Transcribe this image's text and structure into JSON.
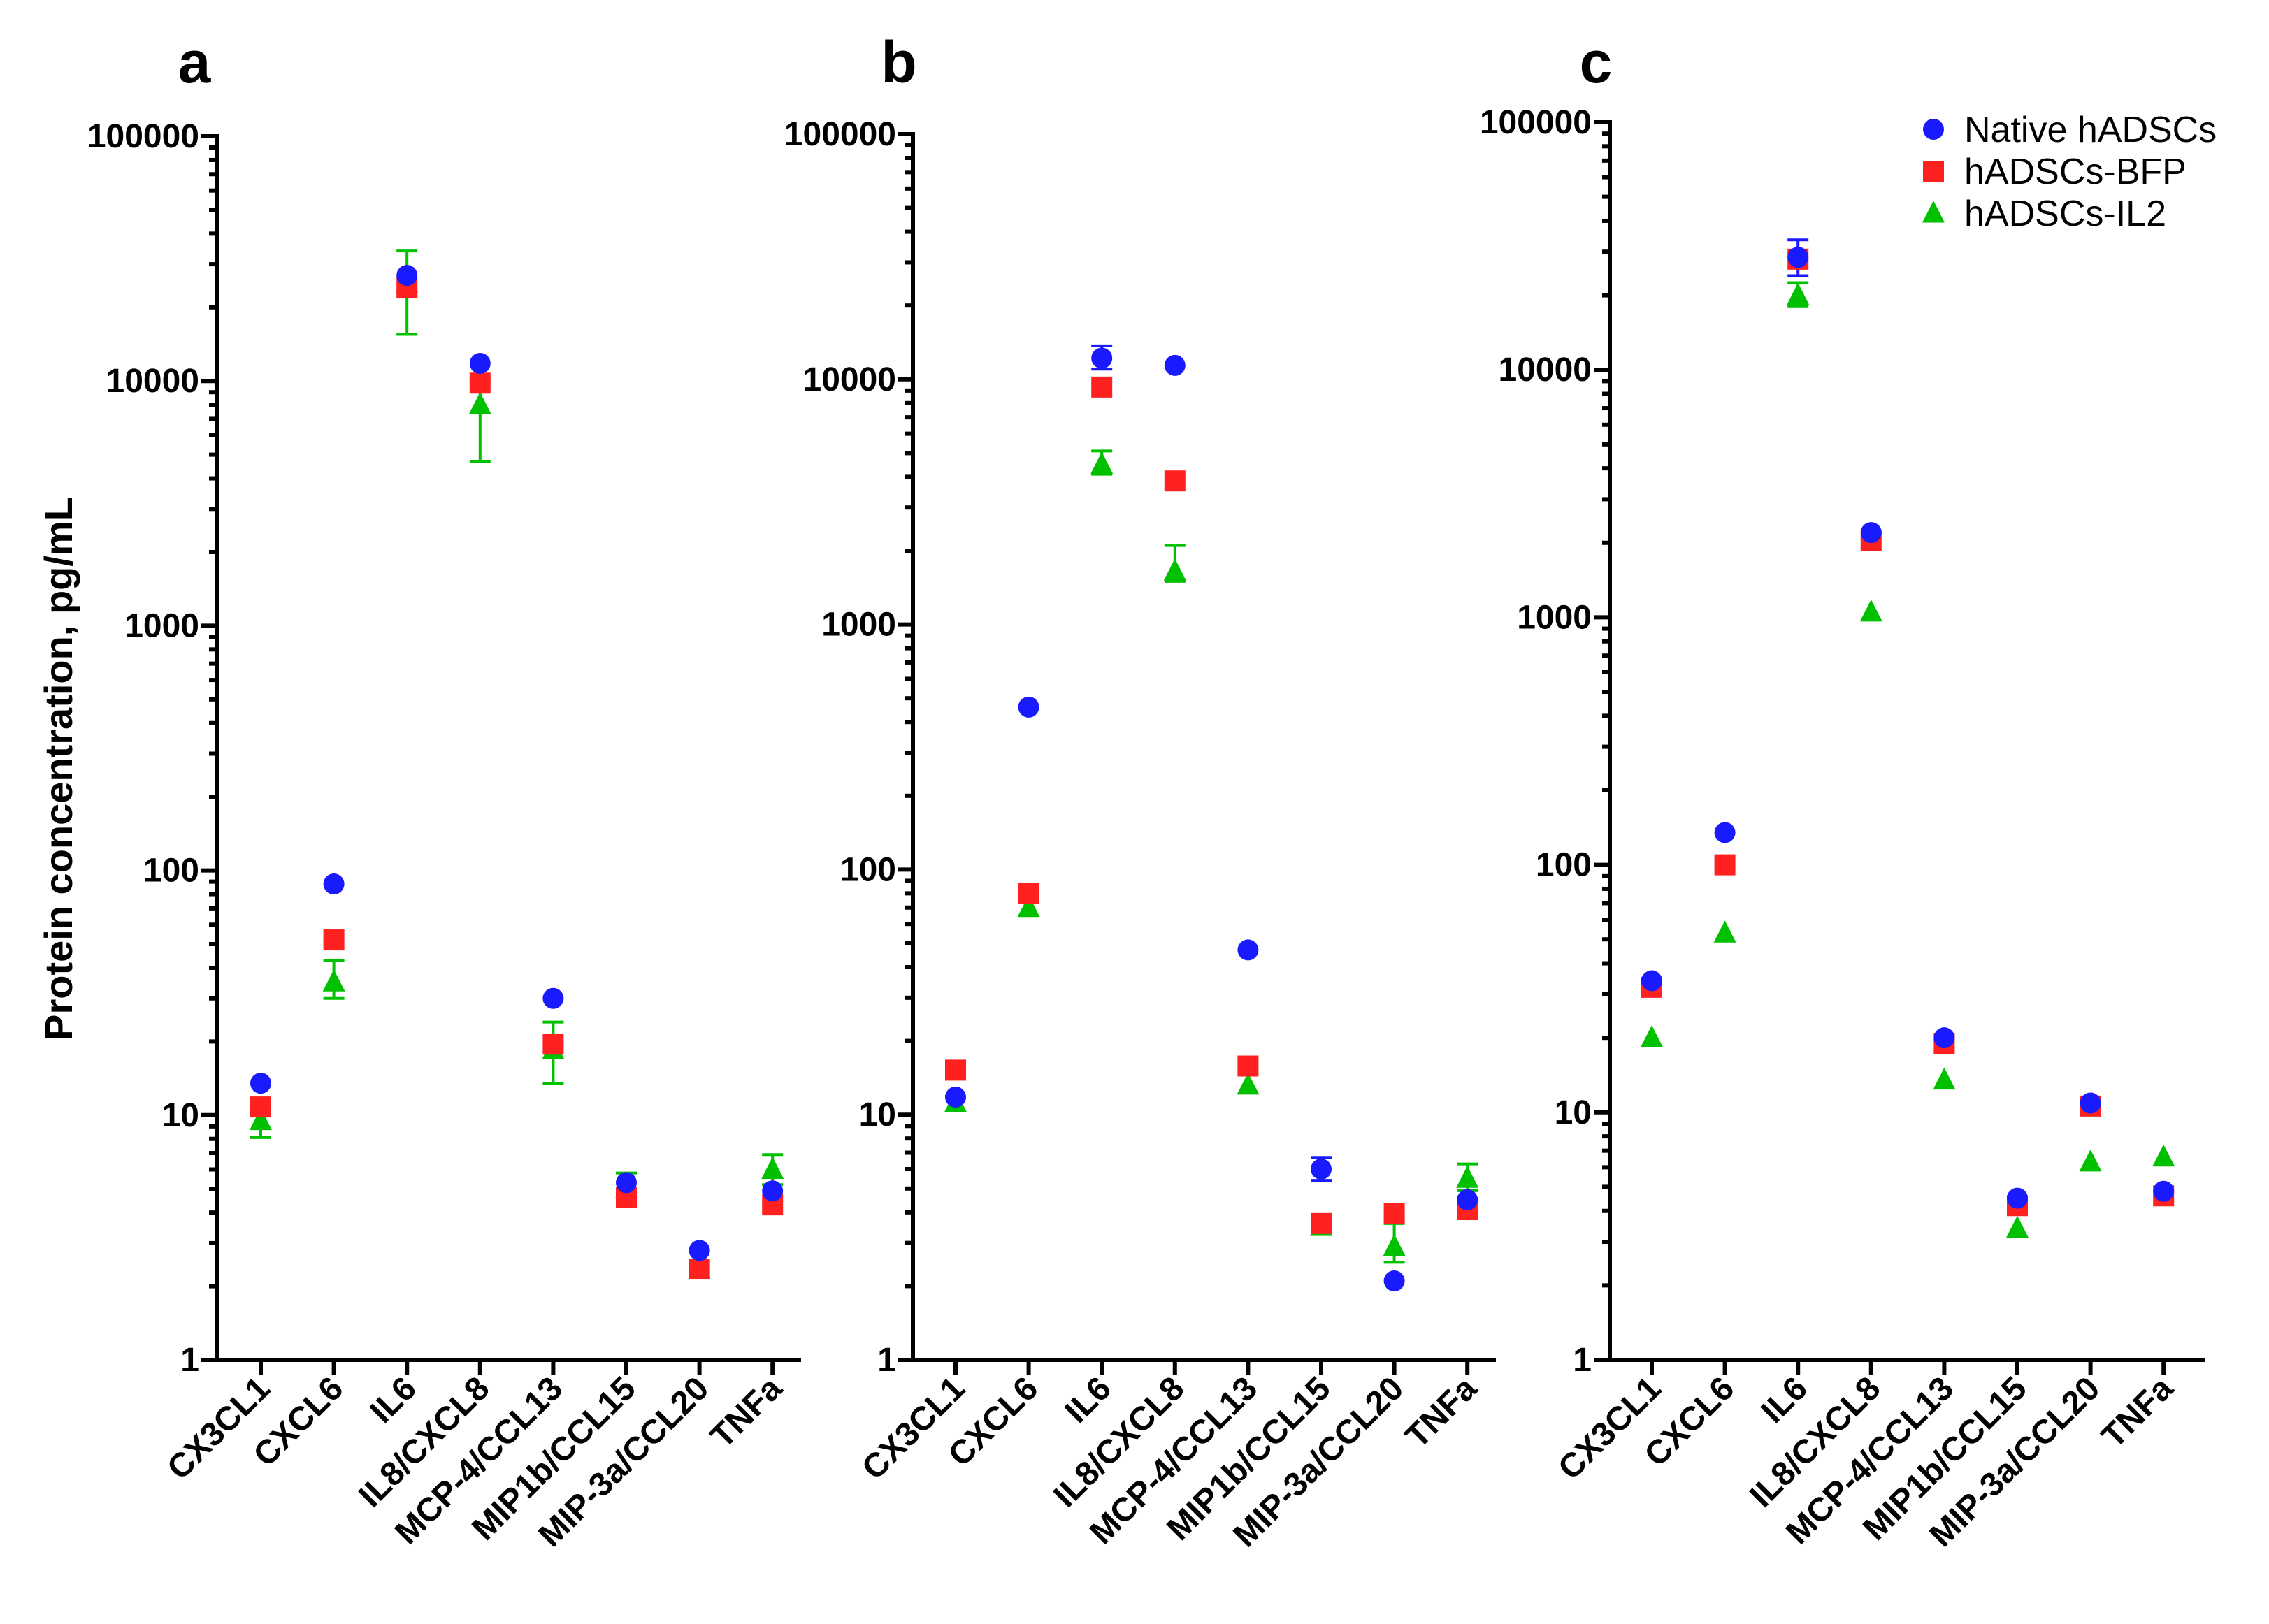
{
  "chart_data": {
    "type": "scatter",
    "y_title": "Protein concentration, pg/mL",
    "y_scale": "log",
    "ylim": [
      1,
      100000
    ],
    "ytick_labels": [
      "1",
      "10",
      "100",
      "1000",
      "10000",
      "100000"
    ],
    "categories": [
      "CX3CL1",
      "CXCL6",
      "IL6",
      "IL8/CXCL8",
      "MCP-4/CCL13",
      "MIP1b/CCL15",
      "MIP-3a/CCL20",
      "TNFa"
    ],
    "legend": [
      {
        "name": "Native hADSCs",
        "color": "#1a1aff",
        "marker": "circle"
      },
      {
        "name": "hADSCs-BFP",
        "color": "#ff2020",
        "marker": "square"
      },
      {
        "name": "hADSCs-IL2",
        "color": "#00c000",
        "marker": "triangle"
      }
    ],
    "legend_position": "top-right of panel c",
    "panels": [
      {
        "letter": "a",
        "series": [
          {
            "name": "Native hADSCs",
            "values": [
              13.5,
              88,
              27000,
              11800,
              30,
              5.3,
              2.8,
              4.9
            ]
          },
          {
            "name": "hADSCs-BFP",
            "values": [
              10.8,
              52,
              24000,
              9800,
              19.5,
              4.6,
              2.35,
              4.3
            ]
          },
          {
            "name": "hADSCs-IL2",
            "values": [
              9.5,
              35,
              25000,
              8000,
              18.5,
              5.0,
              2.35,
              6.0
            ]
          }
        ],
        "errors": [
          {
            "series": "hADSCs-IL2",
            "category": "CX3CL1",
            "low": 8.1,
            "high": 10.5
          },
          {
            "series": "hADSCs-IL2",
            "category": "CXCL6",
            "low": 30,
            "high": 43
          },
          {
            "series": "hADSCs-IL2",
            "category": "IL6",
            "low": 15500,
            "high": 34000
          },
          {
            "series": "hADSCs-IL2",
            "category": "IL8/CXCL8",
            "low": 4700,
            "high": 10000
          },
          {
            "series": "hADSCs-IL2",
            "category": "MCP-4/CCL13",
            "low": 13.5,
            "high": 24
          },
          {
            "series": "hADSCs-IL2",
            "category": "MIP1b/CCL15",
            "low": 4.4,
            "high": 5.8
          },
          {
            "series": "hADSCs-IL2",
            "category": "TNFa",
            "low": 5.2,
            "high": 6.9
          }
        ]
      },
      {
        "letter": "b",
        "series": [
          {
            "name": "Native hADSCs",
            "values": [
              11.8,
              460,
              12200,
              11400,
              47,
              6.0,
              2.1,
              4.5
            ]
          },
          {
            "name": "hADSCs-BFP",
            "values": [
              15.2,
              80,
              9300,
              3850,
              15.8,
              3.6,
              3.95,
              4.1
            ]
          },
          {
            "name": "hADSCs-IL2",
            "values": [
              11.2,
              70,
              4500,
              1650,
              13.2,
              3.5,
              2.9,
              5.5
            ]
          }
        ],
        "errors": [
          {
            "series": "Native hADSCs",
            "category": "IL6",
            "low": 11000,
            "high": 13700
          },
          {
            "series": "hADSCs-IL2",
            "category": "IL6",
            "low": 4100,
            "high": 5100
          },
          {
            "series": "hADSCs-IL2",
            "category": "IL8/CXCL8",
            "low": 1500,
            "high": 2100
          },
          {
            "series": "Native hADSCs",
            "category": "MIP1b/CCL15",
            "low": 5.4,
            "high": 6.7
          },
          {
            "series": "hADSCs-IL2",
            "category": "MIP-3a/CCL20",
            "low": 2.5,
            "high": 3.6
          },
          {
            "series": "hADSCs-IL2",
            "category": "TNFa",
            "low": 4.9,
            "high": 6.3
          }
        ]
      },
      {
        "letter": "c",
        "series": [
          {
            "name": "Native hADSCs",
            "values": [
              34,
              135,
              28500,
              2200,
              20,
              4.5,
              10.9,
              4.8
            ]
          },
          {
            "name": "hADSCs-BFP",
            "values": [
              32,
              100,
              28000,
              2050,
              19,
              4.2,
              10.6,
              4.6
            ]
          },
          {
            "name": "hADSCs-IL2",
            "values": [
              20,
              53,
              20000,
              1050,
              13.5,
              3.4,
              6.3,
              6.6
            ]
          }
        ],
        "errors": [
          {
            "series": "Native hADSCs",
            "category": "IL6",
            "low": 24000,
            "high": 33500
          },
          {
            "series": "hADSCs-IL2",
            "category": "IL6",
            "low": 18000,
            "high": 22500
          }
        ]
      }
    ]
  }
}
